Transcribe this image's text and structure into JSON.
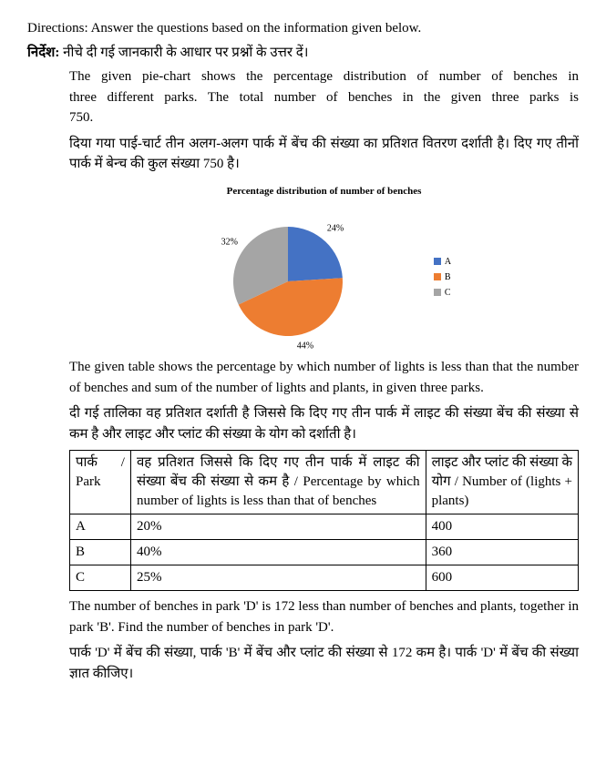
{
  "directions": {
    "label_en": "Directions: ",
    "text_en": "Answer the questions based on the information given below.",
    "label_hi": "निर्देश:",
    "text_hi": "नीचे दी गई जानकारी के आधार पर प्रश्नों के उत्तर दें।"
  },
  "intro": {
    "en1": "The given pie-chart shows the percentage distribution of number of benches in three different parks. The total number of benches in the given three parks is 750.",
    "hi1": "दिया गया पाई-चार्ट तीन अलग-अलग पार्क में बेंच की संख्या का प्रतिशत वितरण दर्शाती है। दिए गए तीनों पार्क में बेन्च की कुल संख्या 750 है।"
  },
  "chart": {
    "title": "Percentage distribution of number of benches",
    "type": "pie",
    "slices": [
      {
        "label": "A",
        "value": 24,
        "color": "#4472c4",
        "pct_label": "24%"
      },
      {
        "label": "B",
        "value": 44,
        "color": "#ed7d31",
        "pct_label": "44%"
      },
      {
        "label": "C",
        "value": 32,
        "color": "#a5a5a5",
        "pct_label": "32%"
      }
    ],
    "label_fontsize": 10
  },
  "mid": {
    "en": "The given table shows the percentage by which number of lights is less than that the number of benches and sum of the number of lights and plants, in given three parks.",
    "hi": "दी गई तालिका वह प्रतिशत दर्शाती है जिससे कि दिए गए तीन पार्क में लाइट की संख्या बेंच की संख्या से कम है और लाइट और प्लांट की संख्या के योग को दर्शाती है।"
  },
  "table": {
    "header": {
      "park": "पार्क / Park",
      "pct": "वह प्रतिशत जिससे कि दिए गए तीन पार्क में लाइट की संख्या बेंच की संख्या से कम है / Percentage by which number of lights is less than that of benches",
      "sum": "लाइट और प्लांट की संख्या के योग / Number of (lights + plants)"
    },
    "rows": [
      {
        "park": "A",
        "pct": "20%",
        "sum": "400"
      },
      {
        "park": "B",
        "pct": "40%",
        "sum": "360"
      },
      {
        "park": "C",
        "pct": "25%",
        "sum": "600"
      }
    ]
  },
  "question": {
    "en": "The number of benches in park 'D' is 172 less than number of benches and plants, together in park 'B'. Find the number of benches in park 'D'.",
    "hi": "पार्क 'D' में बेंच की संख्या, पार्क 'B' में बेंच और प्लांट की संख्या से 172 कम है। पार्क 'D' में बेंच की संख्या ज्ञात कीजिए।"
  }
}
